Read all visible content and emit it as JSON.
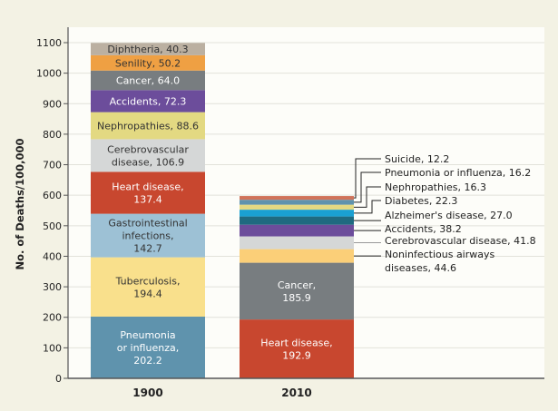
{
  "chart_data": {
    "type": "bar",
    "stacked": true,
    "ylabel": "No. of Deaths/100,000",
    "ylim": [
      0,
      1100
    ],
    "yticks": [
      0,
      100,
      200,
      300,
      400,
      500,
      600,
      700,
      800,
      900,
      1000,
      1100
    ],
    "grid": true,
    "categories": [
      "1900",
      "2010"
    ],
    "stacks": [
      {
        "category": "1900",
        "segments": [
          {
            "name": "Pneumonia or influenza",
            "value": 202.2,
            "color": "#5f93ad",
            "label_lines": [
              "Pneumonia",
              "or influenza,",
              "202.2"
            ]
          },
          {
            "name": "Tuberculosis",
            "value": 194.4,
            "color": "#f9e08c",
            "label_lines": [
              "Tuberculosis,",
              "194.4"
            ]
          },
          {
            "name": "Gastrointestinal infections",
            "value": 142.7,
            "color": "#9dc1d5",
            "label_lines": [
              "Gastrointestinal",
              "infections,",
              "142.7"
            ]
          },
          {
            "name": "Heart disease",
            "value": 137.4,
            "color": "#c8472f",
            "label_lines": [
              "Heart disease,",
              "137.4"
            ]
          },
          {
            "name": "Cerebrovascular disease",
            "value": 106.9,
            "color": "#d5d7d7",
            "label_lines": [
              "Cerebrovascular",
              "disease, 106.9"
            ]
          },
          {
            "name": "Nephropathies",
            "value": 88.6,
            "color": "#e3d982",
            "label_lines": [
              "Nephropathies, 88.6"
            ]
          },
          {
            "name": "Accidents",
            "value": 72.3,
            "color": "#6c4d9b",
            "label_lines": [
              "Accidents, 72.3"
            ]
          },
          {
            "name": "Cancer",
            "value": 64.0,
            "color": "#787d80",
            "label_lines": [
              "Cancer, 64.0"
            ]
          },
          {
            "name": "Senility",
            "value": 50.2,
            "color": "#efa043",
            "label_lines": [
              "Senility, 50.2"
            ]
          },
          {
            "name": "Diphtheria",
            "value": 40.3,
            "color": "#bbb0a1",
            "label_lines": [
              "Diphtheria, 40.3"
            ]
          }
        ]
      },
      {
        "category": "2010",
        "segments": [
          {
            "name": "Heart disease",
            "value": 192.9,
            "color": "#c8472f",
            "label_lines": [
              "Heart disease,",
              "192.9"
            ]
          },
          {
            "name": "Cancer",
            "value": 185.9,
            "color": "#787d80",
            "label_lines": [
              "Cancer,",
              "185.9"
            ]
          },
          {
            "name": "Noninfectious airways diseases",
            "value": 44.6,
            "color": "#fbcf78",
            "label_lines": [
              "Noninfectious airways",
              "diseases, 44.6"
            ]
          },
          {
            "name": "Cerebrovascular disease",
            "value": 41.8,
            "color": "#d5d7d7",
            "label_lines": [
              "Cerebrovascular disease, 41.8"
            ]
          },
          {
            "name": "Accidents",
            "value": 38.2,
            "color": "#6c4d9b",
            "label_lines": [
              "Accidents, 38.2"
            ]
          },
          {
            "name": "Alzheimer's disease",
            "value": 27.0,
            "color": "#1f6a80",
            "label_lines": [
              "Alzheimer's disease, 27.0"
            ]
          },
          {
            "name": "Diabetes",
            "value": 22.3,
            "color": "#1aa0d2",
            "label_lines": [
              "Diabetes, 22.3"
            ]
          },
          {
            "name": "Nephropathies",
            "value": 16.3,
            "color": "#e3d982",
            "label_lines": [
              "Nephropathies, 16.3"
            ]
          },
          {
            "name": "Pneumonia or influenza",
            "value": 16.2,
            "color": "#5f93ad",
            "label_lines": [
              "Pneumonia or influenza, 16.2"
            ]
          },
          {
            "name": "Suicide",
            "value": 12.2,
            "color": "#d0735a",
            "label_lines": [
              "Suicide, 12.2"
            ]
          }
        ]
      }
    ]
  }
}
